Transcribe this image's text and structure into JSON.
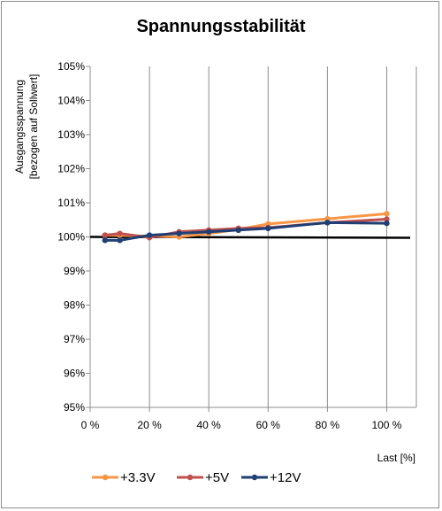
{
  "chart_data": {
    "type": "line",
    "title": "Spannungsstabilität",
    "xlabel": "Last [%]",
    "ylabel_line1": "Ausgangsspannung",
    "ylabel_line2": "[bezogen auf Sollwert]",
    "xlim": [
      0,
      110
    ],
    "ylim": [
      95,
      105
    ],
    "x_ticks": [
      0,
      20,
      40,
      60,
      80,
      100
    ],
    "x_tick_labels": [
      "0 %",
      "20 %",
      "40 %",
      "60 %",
      "80 %",
      "100 %"
    ],
    "y_ticks": [
      95,
      96,
      97,
      98,
      99,
      100,
      101,
      102,
      103,
      104,
      105
    ],
    "y_tick_labels": [
      "95%",
      "96%",
      "97%",
      "98%",
      "99%",
      "100%",
      "101%",
      "102%",
      "103%",
      "104%",
      "105%"
    ],
    "grid": "vertical",
    "legend": "bottom",
    "reference_line": 100,
    "series": [
      {
        "name": "+3.3V",
        "color": "#f79646",
        "x": [
          5,
          10,
          20,
          30,
          40,
          50,
          60,
          80,
          100
        ],
        "values": [
          100.05,
          100.05,
          100.02,
          100.0,
          100.1,
          100.22,
          100.38,
          100.53,
          100.68
        ]
      },
      {
        "name": "+5V",
        "color": "#c0504d",
        "x": [
          5,
          10,
          20,
          30,
          40,
          50,
          60,
          80,
          100
        ],
        "values": [
          100.05,
          100.1,
          99.98,
          100.15,
          100.2,
          100.25,
          100.27,
          100.42,
          100.52
        ]
      },
      {
        "name": "+12V",
        "color": "#1f3f75",
        "x": [
          5,
          10,
          20,
          30,
          40,
          50,
          60,
          80,
          100
        ],
        "values": [
          99.9,
          99.9,
          100.05,
          100.1,
          100.15,
          100.2,
          100.25,
          100.42,
          100.4
        ]
      }
    ]
  }
}
